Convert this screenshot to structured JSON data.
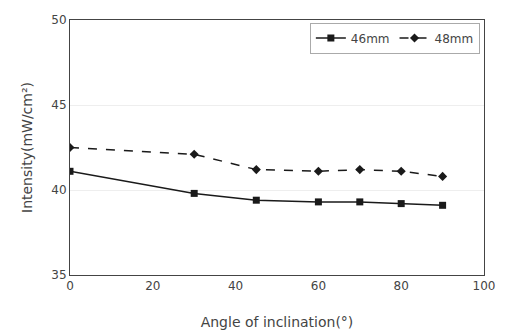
{
  "chart_data": {
    "type": "line",
    "x": [
      0,
      30,
      45,
      60,
      70,
      80,
      90
    ],
    "series": [
      {
        "name": "46mm",
        "color": "#1a1a1a",
        "values": [
          41.1,
          39.8,
          39.4,
          39.3,
          39.3,
          39.2,
          39.1
        ],
        "line_style": "solid",
        "marker": "square"
      },
      {
        "name": "48mm",
        "color": "#1a1a1a",
        "values": [
          42.5,
          42.1,
          41.2,
          41.1,
          41.2,
          41.1,
          40.8
        ],
        "line_style": "dashed",
        "marker": "diamond"
      }
    ],
    "xlabel": "Angle of inclination(°)",
    "ylabel": "Intensity(mW/cm²)",
    "xlim": [
      0,
      100
    ],
    "ylim": [
      35,
      50
    ],
    "xticks": [
      0,
      20,
      40,
      60,
      80,
      100
    ],
    "yticks": [
      35,
      40,
      45,
      50
    ],
    "grid": "y",
    "legend": "upper right"
  }
}
